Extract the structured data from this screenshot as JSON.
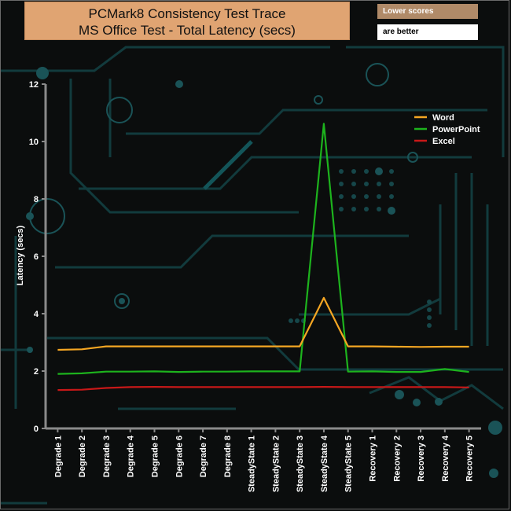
{
  "header": {
    "title_line1": "PCMark8 Consistency Test Trace",
    "title_line2": "MS Office Test  -  Total Latency (secs)",
    "note_line1": "Lower scores",
    "note_line2": "are better"
  },
  "chart_data": {
    "type": "line",
    "title": "PCMark8 Consistency Test Trace MS Office Test - Total Latency (secs)",
    "xlabel": "",
    "ylabel": "Latency (secs)",
    "ylim": [
      0,
      12
    ],
    "yticks": [
      "0",
      "2",
      "4",
      "6",
      "8",
      "10",
      "12"
    ],
    "grid": false,
    "legend_position": "top-right",
    "categories": [
      "Degrade 1",
      "Degrade 2",
      "Degrade 3",
      "Degrade 4",
      "Degrade 5",
      "Degrade 6",
      "Degrade 7",
      "Degrade 8",
      "SteadyState 1",
      "SteadyState 2",
      "SteadyState 3",
      "SteadyState 4",
      "SteadyState 5",
      "Recovery 1",
      "Recovery 2",
      "Recovery 3",
      "Recovery 4",
      "Recovery 5"
    ],
    "series": [
      {
        "name": "Word",
        "color": "#f5a623",
        "values": [
          2.74,
          2.76,
          2.86,
          2.86,
          2.86,
          2.86,
          2.86,
          2.86,
          2.86,
          2.86,
          2.86,
          4.55,
          2.86,
          2.86,
          2.85,
          2.84,
          2.85,
          2.85
        ]
      },
      {
        "name": "PowerPoint",
        "color": "#1db31d",
        "values": [
          1.9,
          1.92,
          1.98,
          1.98,
          1.99,
          1.97,
          1.98,
          1.98,
          1.99,
          1.99,
          1.99,
          10.62,
          1.98,
          1.99,
          1.97,
          1.97,
          2.07,
          1.97
        ]
      },
      {
        "name": "Excel",
        "color": "#c81818",
        "values": [
          1.34,
          1.35,
          1.41,
          1.44,
          1.45,
          1.44,
          1.44,
          1.44,
          1.44,
          1.44,
          1.44,
          1.45,
          1.44,
          1.44,
          1.44,
          1.44,
          1.44,
          1.43
        ]
      }
    ]
  }
}
